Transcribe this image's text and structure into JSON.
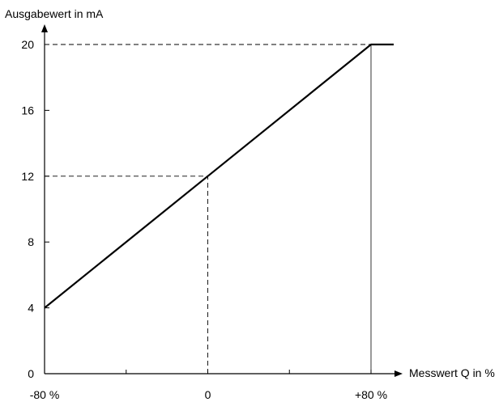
{
  "chart_data": {
    "type": "line",
    "ylabel": "Ausgabewert in mA",
    "xlabel": "Messwert Q in %",
    "xlim": [
      -80,
      80
    ],
    "ylim": [
      0,
      20
    ],
    "x_ticks": [
      -80,
      -40,
      0,
      40,
      80
    ],
    "x_tick_labels": [
      {
        "value": -80,
        "label": "-80 %"
      },
      {
        "value": 0,
        "label": "0"
      },
      {
        "value": 80,
        "label": "+80 %"
      }
    ],
    "y_ticks": [
      0,
      4,
      8,
      12,
      16,
      20
    ],
    "y_tick_labels": [
      "0",
      "4",
      "8",
      "12",
      "16",
      "20"
    ],
    "grid": false,
    "series": [
      {
        "x": [
          -80,
          -80,
          0,
          80,
          80
        ],
        "y": [
          4,
          4,
          12,
          20,
          20
        ],
        "style": "solid",
        "color": "#000000"
      }
    ],
    "segments_outside_range": {
      "left_flat_y": 4,
      "right_flat_y": 20
    },
    "reference_lines": [
      {
        "kind": "horizontal",
        "y": 20,
        "from_x": -80,
        "to_x": 80,
        "style": "dashed"
      },
      {
        "kind": "horizontal",
        "y": 12,
        "from_x": -80,
        "to_x": 0,
        "style": "dashed"
      },
      {
        "kind": "vertical",
        "x": 0,
        "from_y": 0,
        "to_y": 12,
        "style": "dashed"
      },
      {
        "kind": "vertical",
        "x": 80,
        "from_y": 0,
        "to_y": 20,
        "style": "solid-thin"
      }
    ]
  }
}
